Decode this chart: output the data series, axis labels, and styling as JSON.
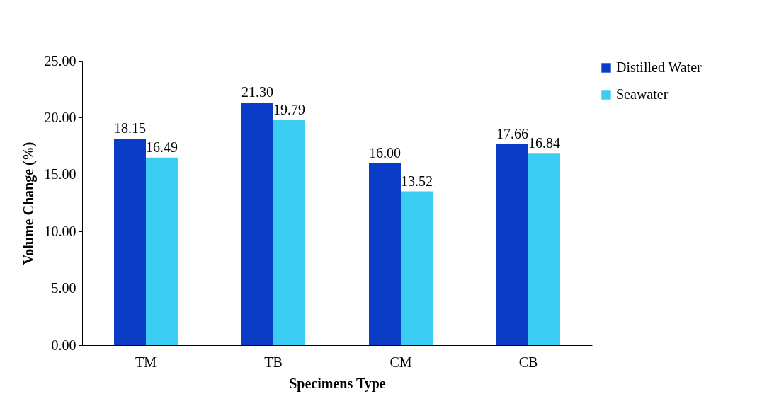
{
  "chart_data": {
    "type": "bar",
    "xlabel": "Specimens Type",
    "ylabel": "Volume Change (%)",
    "categories": [
      "TM",
      "TB",
      "CM",
      "CB"
    ],
    "series": [
      {
        "name": "Distilled Water",
        "color": "#0a3cc8",
        "values": [
          18.15,
          21.3,
          16.0,
          17.66
        ],
        "value_labels": [
          "18.15",
          "21.30",
          "16.00",
          "17.66"
        ]
      },
      {
        "name": "Seawater",
        "color": "#3ccdf5",
        "values": [
          16.49,
          19.79,
          13.52,
          16.84
        ],
        "value_labels": [
          "16.49",
          "19.79",
          "13.52",
          "16.84"
        ]
      }
    ],
    "ylim": [
      0,
      25
    ],
    "yticks": [
      {
        "value": 0,
        "label": "0.00"
      },
      {
        "value": 5,
        "label": "5.00"
      },
      {
        "value": 10,
        "label": "10.00"
      },
      {
        "value": 15,
        "label": "15.00"
      },
      {
        "value": 20,
        "label": "20.00"
      },
      {
        "value": 25,
        "label": "25.00"
      }
    ],
    "grid": false,
    "legend": "right"
  }
}
